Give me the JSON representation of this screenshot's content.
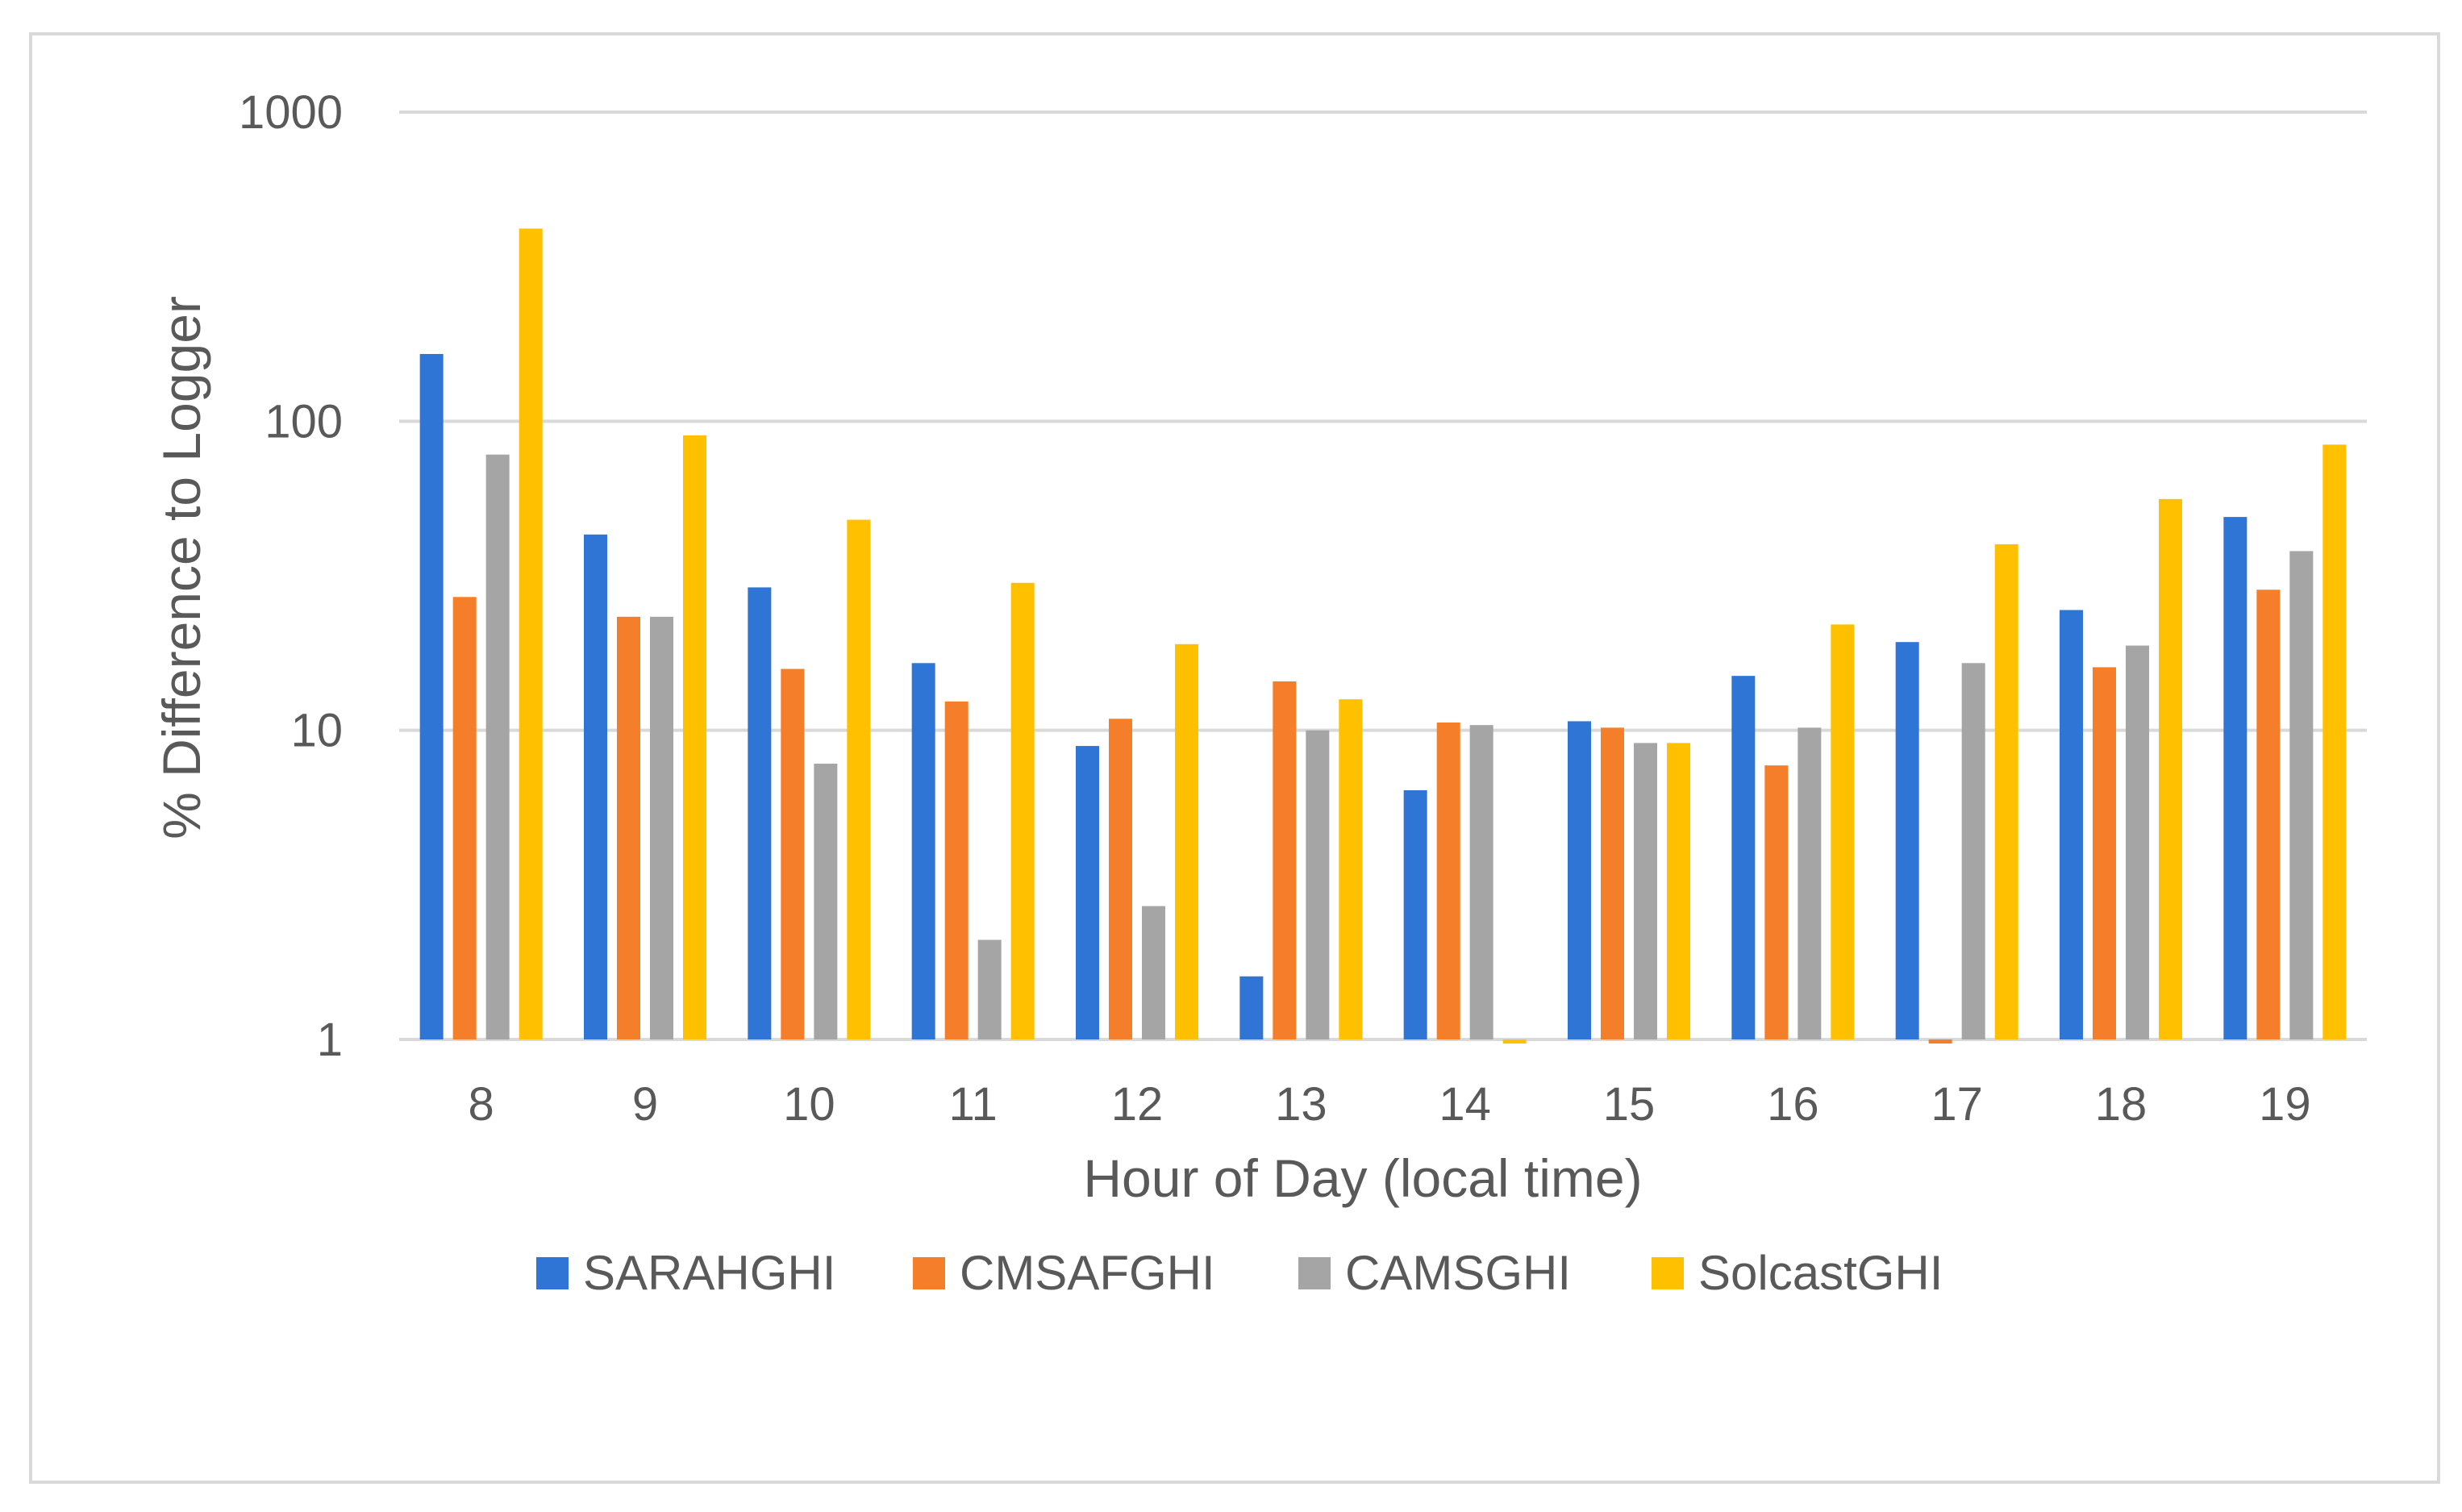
{
  "chart_data": {
    "type": "bar",
    "scale": "log",
    "title": "",
    "xlabel": "Hour of Day (local time)",
    "ylabel": "% Difference to Logger",
    "ylim": [
      1,
      1000
    ],
    "yticks": [
      "1",
      "10",
      "100",
      "1000"
    ],
    "ytick_values": [
      1,
      10,
      100,
      1000
    ],
    "grid": true,
    "legend_position": "bottom",
    "categories": [
      "8",
      "9",
      "10",
      "11",
      "12",
      "13",
      "14",
      "15",
      "16",
      "17",
      "18",
      "19"
    ],
    "series": [
      {
        "name": "SARAHGHI",
        "color": "#2f75d6",
        "values": [
          165,
          43,
          29,
          16.5,
          8.9,
          1.6,
          6.4,
          10.7,
          15,
          19.3,
          24.5,
          49
        ]
      },
      {
        "name": "CMSAFGHI",
        "color": "#f47e2a",
        "values": [
          27,
          23.3,
          15.8,
          12.4,
          10.9,
          14.4,
          10.6,
          10.2,
          7.7,
          0.97,
          16,
          28.5
        ]
      },
      {
        "name": "CAMSGHI",
        "color": "#a5a5a5",
        "values": [
          78,
          23.3,
          7.8,
          2.1,
          2.7,
          10,
          10.4,
          9.1,
          10.2,
          16.5,
          18.8,
          38
        ]
      },
      {
        "name": "SolcastGHI",
        "color": "#ffc000",
        "values": [
          420,
          90,
          48,
          30,
          19,
          12.6,
          0.97,
          9.1,
          22,
          40,
          56,
          84
        ]
      }
    ]
  }
}
